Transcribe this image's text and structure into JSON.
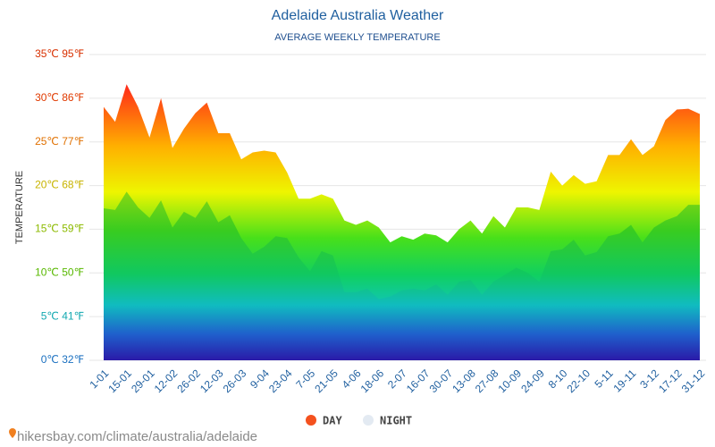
{
  "chart_data": {
    "type": "area",
    "title": "Adelaide Australia Weather",
    "subtitle": "AVERAGE WEEKLY TEMPERATURE",
    "y_label": "TEMPERATURE",
    "source": "hikersbay.com/climate/australia/adelaide",
    "categories": [
      "1-01",
      null,
      "15-01",
      null,
      "29-01",
      null,
      "12-02",
      null,
      "26-02",
      null,
      "12-03",
      null,
      "26-03",
      null,
      "9-04",
      null,
      "23-04",
      null,
      "7-05",
      null,
      "21-05",
      null,
      "4-06",
      null,
      "18-06",
      null,
      "2-07",
      null,
      "16-07",
      null,
      "30-07",
      null,
      "13-08",
      null,
      "27-08",
      null,
      "10-09",
      null,
      "24-09",
      null,
      "8-10",
      null,
      "22-10",
      null,
      "5-11",
      null,
      "19-11",
      null,
      "3-12",
      null,
      "17-12",
      null,
      "31-12"
    ],
    "series": [
      {
        "name": "DAY",
        "color": "#f4511e",
        "values": [
          29,
          27.3,
          31.6,
          29,
          25.5,
          30,
          24.3,
          26.5,
          28.3,
          29.5,
          26,
          26,
          23,
          23.8,
          24,
          23.8,
          21.5,
          18.5,
          18.5,
          19,
          18.5,
          16,
          15.5,
          16,
          15.2,
          13.5,
          14.2,
          13.8,
          14.5,
          14.3,
          13.5,
          15,
          16,
          14.5,
          16.5,
          15.2,
          17.5,
          17.5,
          17.2,
          21.6,
          20,
          21.2,
          20.2,
          20.5,
          23.5,
          23.5,
          25.3,
          23.5,
          24.5,
          27.5,
          28.7,
          28.8,
          28.2
        ]
      },
      {
        "name": "NIGHT",
        "color": "#e3eaf2",
        "values": [
          17.4,
          17.2,
          19.3,
          17.5,
          16.3,
          18.3,
          15.2,
          17,
          16.3,
          18.2,
          15.8,
          16.6,
          14,
          12.2,
          13,
          14.2,
          14,
          11.8,
          10.2,
          12.5,
          12,
          7.8,
          7.8,
          8.2,
          7,
          7.3,
          8,
          8.2,
          8,
          8.7,
          7.5,
          9,
          9.2,
          7.5,
          9,
          9.8,
          10.6,
          10,
          9,
          12.5,
          12.7,
          13.8,
          12,
          12.4,
          14.2,
          14.5,
          15.5,
          13.5,
          15.2,
          16,
          16.5,
          17.8,
          17.8
        ]
      }
    ],
    "ylim": [
      0,
      35
    ],
    "yticks": [
      {
        "value": 0,
        "label": "0℃ 32℉"
      },
      {
        "value": 5,
        "label": "5℃ 41℉"
      },
      {
        "value": 10,
        "label": "10℃ 50℉"
      },
      {
        "value": 15,
        "label": "15℃ 59℉"
      },
      {
        "value": 20,
        "label": "20℃ 68℉"
      },
      {
        "value": 25,
        "label": "25℃ 77℉"
      },
      {
        "value": 30,
        "label": "30℃ 86℉"
      },
      {
        "value": 35,
        "label": "35℃ 95℉"
      }
    ],
    "grid": true,
    "legend": "bottom"
  }
}
